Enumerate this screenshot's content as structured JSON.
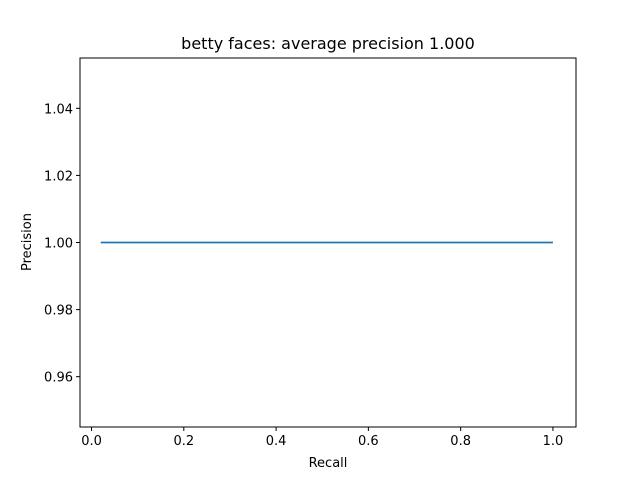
{
  "chart_data": {
    "type": "line",
    "title": "betty faces: average precision 1.000",
    "xlabel": "Recall",
    "ylabel": "Precision",
    "xlim": [
      -0.025,
      1.05
    ],
    "ylim": [
      0.945,
      1.055
    ],
    "xticks": [
      0.0,
      0.2,
      0.4,
      0.6,
      0.8,
      1.0
    ],
    "xtick_labels": [
      "0.0",
      "0.2",
      "0.4",
      "0.6",
      "0.8",
      "1.0"
    ],
    "yticks": [
      0.96,
      0.98,
      1.0,
      1.02,
      1.04
    ],
    "ytick_labels": [
      "0.96",
      "0.98",
      "1.00",
      "1.02",
      "1.04"
    ],
    "grid": false,
    "legend": "none",
    "series": [
      {
        "color": "#1f77b4",
        "x": [
          0.02,
          1.0
        ],
        "y": [
          1.0,
          1.0
        ]
      }
    ]
  }
}
